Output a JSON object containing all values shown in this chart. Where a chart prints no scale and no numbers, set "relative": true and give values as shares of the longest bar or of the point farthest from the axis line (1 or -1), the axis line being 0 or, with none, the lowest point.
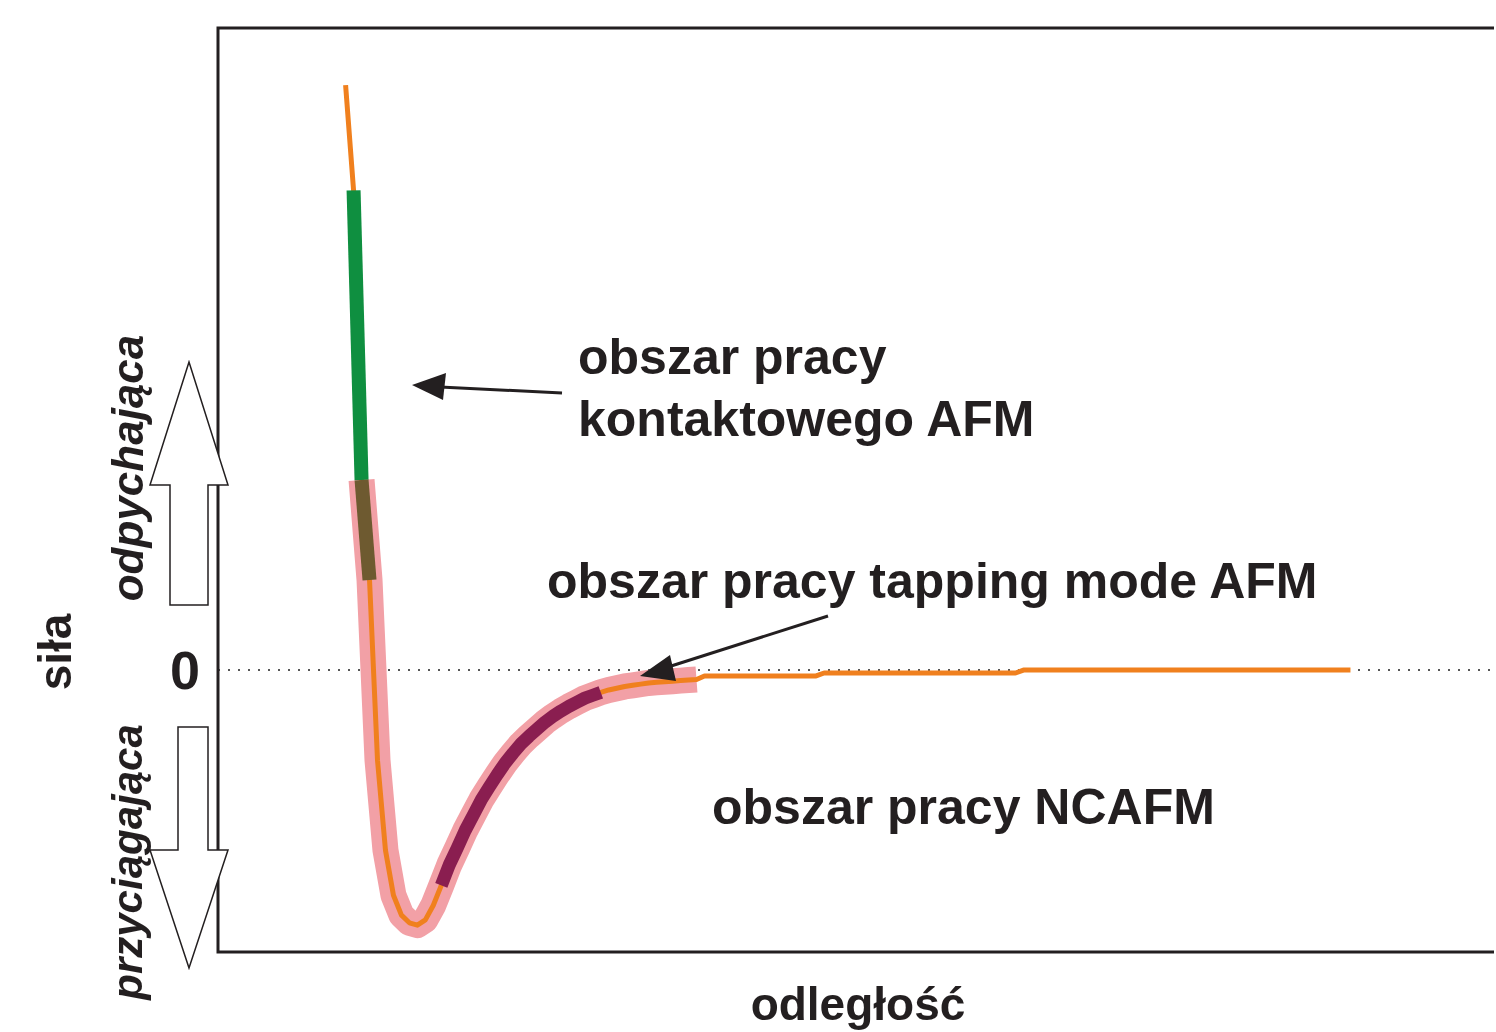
{
  "chart_data": {
    "type": "line",
    "xlabel": "odległość",
    "ylabel": "siła",
    "relative": true,
    "legend": false,
    "marker": "none",
    "line_style": "solid",
    "categories": [
      null,
      null,
      null,
      null,
      null,
      null,
      null,
      null,
      null,
      null,
      null,
      null,
      null,
      null,
      null,
      null,
      null,
      null,
      null,
      null,
      null,
      null,
      null,
      null,
      null,
      null,
      null,
      null,
      null,
      null,
      null,
      null,
      null,
      null,
      null,
      null,
      null,
      null,
      null,
      null,
      null,
      null,
      null,
      null,
      null,
      null,
      null,
      null,
      null,
      null,
      null,
      null,
      null,
      null,
      null,
      null,
      null,
      null,
      null,
      null,
      null,
      null,
      null,
      null,
      null,
      null,
      null,
      null,
      null,
      null,
      null,
      null,
      null,
      null,
      null,
      null,
      null,
      null,
      null,
      null,
      null,
      null,
      null,
      null,
      null,
      null,
      null,
      null,
      null,
      null,
      null,
      null,
      null,
      null,
      null,
      null,
      null,
      null,
      null,
      null,
      null,
      null,
      null,
      null,
      null,
      null,
      null,
      null,
      null,
      null,
      null,
      null,
      null,
      null,
      null,
      null,
      null,
      null,
      null,
      null,
      null,
      null,
      null,
      null,
      null,
      null,
      null,
      null,
      null,
      null,
      null,
      null,
      null,
      null,
      null,
      null,
      null,
      null,
      null,
      null,
      null,
      null,
      null,
      null,
      null,
      null,
      null,
      null,
      null,
      null,
      null,
      null,
      null,
      null,
      null,
      null,
      null,
      null,
      null,
      null,
      null
    ],
    "series": [
      {
        "color": "#f2a0a6",
        "values": [
          null,
          null,
          null,
          null,
          null,
          null,
          null,
          null,
          null,
          null,
          null,
          null,
          null,
          null,
          null,
          null,
          null,
          null,
          0.325,
          0.154,
          -0.154,
          -0.308,
          -0.385,
          -0.419,
          -0.432,
          -0.436,
          -0.427,
          -0.402,
          -0.368,
          -0.333,
          -0.304,
          -0.274,
          -0.248,
          -0.222,
          -0.2,
          -0.179,
          -0.159,
          -0.142,
          -0.126,
          -0.113,
          -0.101,
          -0.089,
          -0.079,
          -0.07,
          -0.062,
          -0.055,
          -0.048,
          -0.043,
          -0.038,
          -0.034,
          -0.031,
          -0.028,
          -0.026,
          -0.024,
          -0.022,
          -0.021,
          -0.02,
          -0.019,
          -0.018,
          -0.017,
          -0.016,
          null,
          null,
          null,
          null,
          null,
          null,
          null,
          null,
          null,
          null,
          null,
          null,
          null,
          null,
          null,
          null,
          null,
          null,
          null,
          null,
          null,
          null,
          null,
          null,
          null,
          null,
          null,
          null,
          null,
          null,
          null,
          null,
          null,
          null,
          null,
          null,
          null,
          null,
          null,
          null,
          null,
          null,
          null,
          null,
          null,
          null,
          null,
          null,
          null,
          null,
          null,
          null,
          null,
          null,
          null,
          null,
          null,
          null,
          null,
          null,
          null,
          null,
          null,
          null,
          null,
          null,
          null,
          null,
          null,
          null,
          null,
          null,
          null,
          null,
          null,
          null,
          null,
          null,
          null,
          null,
          null,
          null,
          null,
          null,
          null,
          null,
          null,
          null,
          null,
          null,
          null,
          null,
          null,
          null,
          null,
          null,
          null,
          null,
          null,
          null
        ]
      },
      {
        "color": "#f0801e",
        "values": [
          null,
          null,
          null,
          null,
          null,
          null,
          null,
          null,
          null,
          null,
          null,
          null,
          null,
          null,
          null,
          null,
          1.0,
          0.82,
          0.325,
          0.154,
          -0.154,
          -0.308,
          -0.385,
          -0.419,
          -0.432,
          -0.436,
          -0.427,
          -0.402,
          -0.368,
          -0.333,
          -0.304,
          -0.274,
          -0.248,
          -0.222,
          -0.2,
          -0.179,
          -0.159,
          -0.142,
          -0.126,
          -0.113,
          -0.101,
          -0.089,
          -0.079,
          -0.07,
          -0.062,
          -0.055,
          -0.048,
          -0.043,
          -0.038,
          -0.034,
          -0.031,
          -0.028,
          -0.026,
          -0.024,
          -0.022,
          -0.021,
          -0.02,
          -0.019,
          -0.018,
          -0.017,
          -0.016,
          -0.01,
          -0.01,
          -0.01,
          -0.01,
          -0.01,
          -0.01,
          -0.01,
          -0.01,
          -0.01,
          -0.01,
          -0.01,
          -0.01,
          -0.01,
          -0.01,
          -0.01,
          -0.005,
          -0.005,
          -0.005,
          -0.005,
          -0.005,
          -0.005,
          -0.005,
          -0.005,
          -0.005,
          -0.005,
          -0.005,
          -0.005,
          -0.005,
          -0.005,
          -0.005,
          -0.005,
          -0.005,
          -0.005,
          -0.005,
          -0.005,
          -0.005,
          -0.005,
          -0.005,
          -0.005,
          -0.005,
          0,
          0,
          0,
          0,
          0,
          0,
          0,
          0,
          0,
          0,
          0,
          0,
          0,
          0,
          0,
          0,
          0,
          0,
          0,
          0,
          0,
          0,
          0,
          0,
          0,
          0,
          0,
          0,
          0,
          0,
          0,
          0,
          0,
          0,
          0,
          0,
          0,
          0,
          0,
          0,
          0,
          0,
          null,
          null,
          null,
          null,
          null,
          null,
          null,
          null,
          null,
          null,
          null,
          null,
          null,
          null,
          null,
          null,
          null,
          null
        ]
      },
      {
        "color": "#8a1e50",
        "values": [
          null,
          null,
          null,
          null,
          null,
          null,
          null,
          null,
          null,
          null,
          null,
          null,
          null,
          null,
          null,
          null,
          null,
          null,
          null,
          null,
          null,
          null,
          null,
          null,
          null,
          null,
          null,
          null,
          -0.368,
          -0.333,
          -0.304,
          -0.274,
          -0.248,
          -0.222,
          -0.2,
          -0.179,
          -0.159,
          -0.142,
          -0.126,
          -0.113,
          -0.101,
          -0.089,
          -0.079,
          -0.07,
          -0.062,
          -0.055,
          -0.048,
          -0.043,
          -0.038,
          null,
          null,
          null,
          null,
          null,
          null,
          null,
          null,
          null,
          null,
          null,
          null,
          null,
          null,
          null,
          null,
          null,
          null,
          null,
          null,
          null,
          null,
          null,
          null,
          null,
          null,
          null,
          null,
          null,
          null,
          null,
          null,
          null,
          null,
          null,
          null,
          null,
          null,
          null,
          null,
          null,
          null,
          null,
          null,
          null,
          null,
          null,
          null,
          null,
          null,
          null,
          null,
          null,
          null,
          null,
          null,
          null,
          null,
          null,
          null,
          null,
          null,
          null,
          null,
          null,
          null,
          null,
          null,
          null,
          null,
          null,
          null,
          null,
          null,
          null,
          null,
          null,
          null,
          null,
          null,
          null,
          null,
          null,
          null,
          null,
          null,
          null,
          null,
          null,
          null,
          null,
          null,
          null,
          null,
          null,
          null,
          null,
          null,
          null,
          null,
          null,
          null,
          null,
          null,
          null,
          null,
          null,
          null,
          null,
          null,
          null,
          null
        ]
      },
      {
        "color": "#0f8f40",
        "values": [
          null,
          null,
          null,
          null,
          null,
          null,
          null,
          null,
          null,
          null,
          null,
          null,
          null,
          null,
          null,
          null,
          null,
          0.82,
          0.325,
          null,
          null,
          null,
          null,
          null,
          null,
          null,
          null,
          null,
          null,
          null,
          null,
          null,
          null,
          null,
          null,
          null,
          null,
          null,
          null,
          null,
          null,
          null,
          null,
          null,
          null,
          null,
          null,
          null,
          null,
          null,
          null,
          null,
          null,
          null,
          null,
          null,
          null,
          null,
          null,
          null,
          null,
          null,
          null,
          null,
          null,
          null,
          null,
          null,
          null,
          null,
          null,
          null,
          null,
          null,
          null,
          null,
          null,
          null,
          null,
          null,
          null,
          null,
          null,
          null,
          null,
          null,
          null,
          null,
          null,
          null,
          null,
          null,
          null,
          null,
          null,
          null,
          null,
          null,
          null,
          null,
          null,
          null,
          null,
          null,
          null,
          null,
          null,
          null,
          null,
          null,
          null,
          null,
          null,
          null,
          null,
          null,
          null,
          null,
          null,
          null,
          null,
          null,
          null,
          null,
          null,
          null,
          null,
          null,
          null,
          null,
          null,
          null,
          null,
          null,
          null,
          null,
          null,
          null,
          null,
          null,
          null,
          null,
          null,
          null,
          null,
          null,
          null,
          null,
          null,
          null,
          null,
          null,
          null,
          null,
          null,
          null,
          null,
          null,
          null,
          null,
          null
        ]
      },
      {
        "color": "#6e5a30",
        "values": [
          null,
          null,
          null,
          null,
          null,
          null,
          null,
          null,
          null,
          null,
          null,
          null,
          null,
          null,
          null,
          null,
          null,
          null,
          0.325,
          0.154,
          null,
          null,
          null,
          null,
          null,
          null,
          null,
          null,
          null,
          null,
          null,
          null,
          null,
          null,
          null,
          null,
          null,
          null,
          null,
          null,
          null,
          null,
          null,
          null,
          null,
          null,
          null,
          null,
          null,
          null,
          null,
          null,
          null,
          null,
          null,
          null,
          null,
          null,
          null,
          null,
          null,
          null,
          null,
          null,
          null,
          null,
          null,
          null,
          null,
          null,
          null,
          null,
          null,
          null,
          null,
          null,
          null,
          null,
          null,
          null,
          null,
          null,
          null,
          null,
          null,
          null,
          null,
          null,
          null,
          null,
          null,
          null,
          null,
          null,
          null,
          null,
          null,
          null,
          null,
          null,
          null,
          null,
          null,
          null,
          null,
          null,
          null,
          null,
          null,
          null,
          null,
          null,
          null,
          null,
          null,
          null,
          null,
          null,
          null,
          null,
          null,
          null,
          null,
          null,
          null,
          null,
          null,
          null,
          null,
          null,
          null,
          null,
          null,
          null,
          null,
          null,
          null,
          null,
          null,
          null,
          null,
          null,
          null,
          null,
          null,
          null,
          null,
          null,
          null,
          null,
          null,
          null,
          null,
          null,
          null,
          null,
          null,
          null,
          null,
          null,
          null
        ]
      }
    ],
    "ref_lines": [
      {
        "axis": "y",
        "value": 0,
        "label": "0",
        "color": "#555555",
        "line_style": "dotted"
      }
    ],
    "annotations": [
      "obszar pracy kontaktowego AFM",
      "obszar pracy tapping mode AFM",
      "obszar pracy NCAFM",
      "odpychająca",
      "przyciągająca"
    ]
  }
}
